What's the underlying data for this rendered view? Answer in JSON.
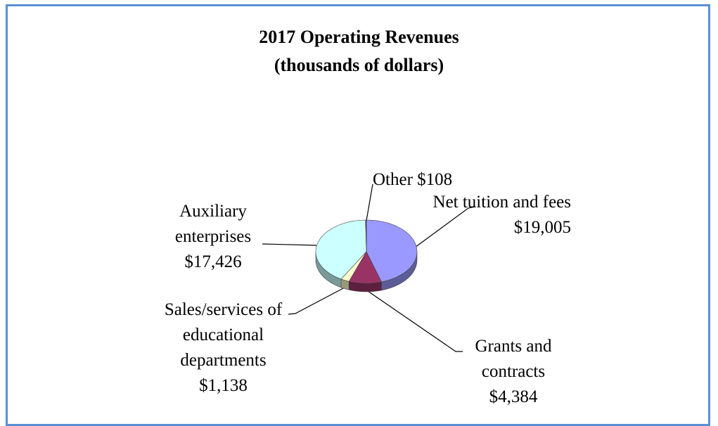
{
  "chart_data": {
    "type": "pie",
    "title": "2017 Operating Revenues",
    "subtitle": "(thousands of dollars)",
    "categories": [
      "Net tuition and fees",
      "Grants and contracts",
      "Sales/services of educational departments",
      "Auxiliary enterprises",
      "Other"
    ],
    "values": [
      19005,
      4384,
      1138,
      17426,
      108
    ],
    "value_labels": [
      "$19,005",
      "$4,384",
      "$1,138",
      "$17,426",
      "$108"
    ],
    "colors": [
      "#9999ff",
      "#993366",
      "#ffffcc",
      "#ccffff",
      "#660066"
    ]
  }
}
